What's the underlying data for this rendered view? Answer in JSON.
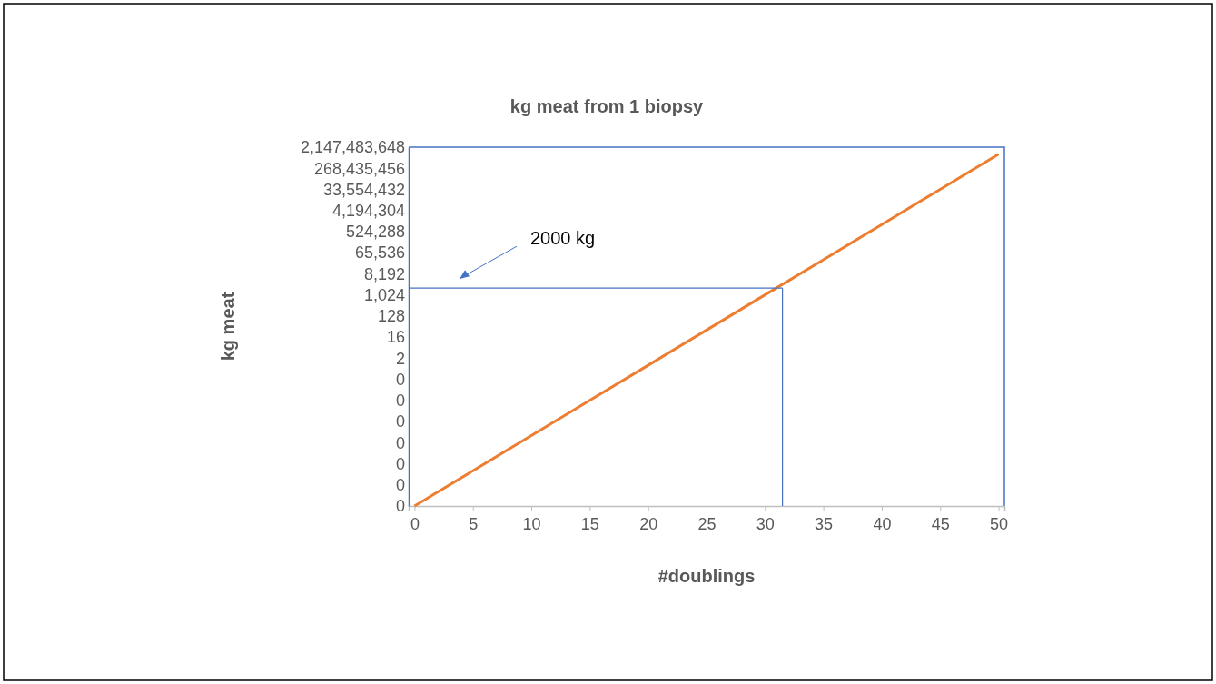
{
  "chart_data": {
    "type": "line",
    "title": "kg meat from 1 biopsy",
    "xlabel": "#doublings",
    "ylabel": "kg meat",
    "x": [
      0,
      5,
      10,
      15,
      20,
      25,
      30,
      35,
      40,
      45,
      50
    ],
    "series": [
      {
        "color": "#ed7d31",
        "values": [
          9.5367e-07,
          3.0518e-05,
          0.00097656,
          0.03125,
          1,
          32,
          1024,
          32768,
          1048576,
          33554432,
          1073741824
        ]
      }
    ],
    "log": "y",
    "xlim": [
      -0.5,
      50.5
    ],
    "xticks": [
      0,
      5,
      10,
      15,
      20,
      25,
      30,
      35,
      40,
      45,
      50
    ],
    "ylim": [
      9.5367e-07,
      2147483648
    ],
    "yticks": [
      {
        "value": 9.5367e-07,
        "label": "0"
      },
      {
        "value": 7.6294e-06,
        "label": "0"
      },
      {
        "value": 6.1035e-05,
        "label": "0"
      },
      {
        "value": 0.00048828,
        "label": "0"
      },
      {
        "value": 0.0039063,
        "label": "0"
      },
      {
        "value": 0.03125,
        "label": "0"
      },
      {
        "value": 0.25,
        "label": "0"
      },
      {
        "value": 2,
        "label": "2"
      },
      {
        "value": 16,
        "label": "16"
      },
      {
        "value": 128,
        "label": "128"
      },
      {
        "value": 1024,
        "label": "1,024"
      },
      {
        "value": 8192,
        "label": "8,192"
      },
      {
        "value": 65536,
        "label": "65,536"
      },
      {
        "value": 524288,
        "label": "524,288"
      },
      {
        "value": 4194304,
        "label": "4,194,304"
      },
      {
        "value": 33554432,
        "label": "33,554,432"
      },
      {
        "value": 268435456,
        "label": "268,435,456"
      },
      {
        "value": 2147483648,
        "label": "2,147,483,648"
      }
    ],
    "ref_lines": [
      {
        "axis": "y",
        "value": 2000,
        "color": "#4472c4"
      },
      {
        "axis": "x",
        "value": 31.5,
        "color": "#4472c4"
      }
    ],
    "annotations": [
      "2000 kg"
    ],
    "grid": false,
    "marker": "none",
    "line_style": "solid"
  }
}
